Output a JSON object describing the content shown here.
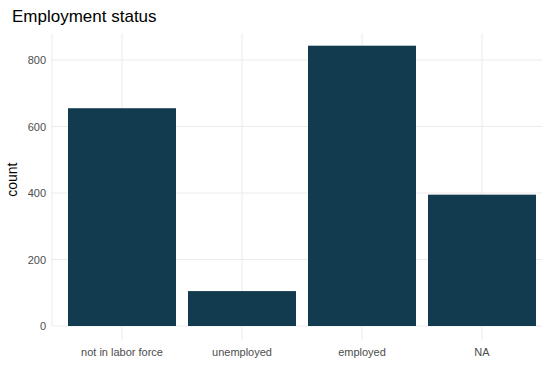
{
  "chart_data": {
    "type": "bar",
    "title": "Employment status",
    "y_label": "count",
    "categories": [
      "not in labor force",
      "unemployed",
      "employed",
      "NA"
    ],
    "values": [
      655,
      105,
      843,
      395
    ],
    "color": "#133b4f",
    "ylim": [
      0,
      880
    ],
    "yticks": [
      0,
      200,
      400,
      600,
      800
    ],
    "grid": true
  }
}
